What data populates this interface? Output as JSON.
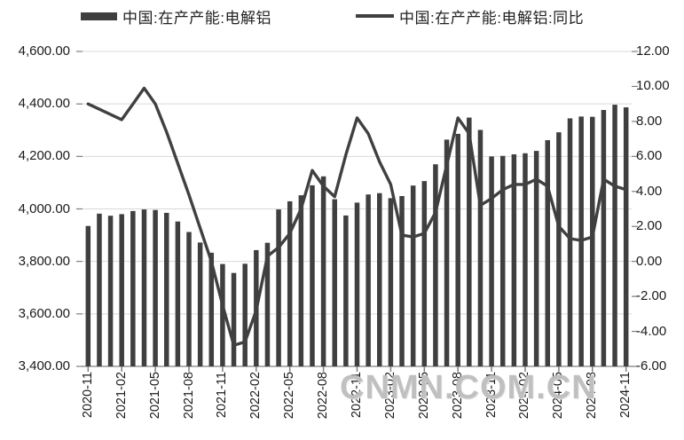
{
  "legend": [
    {
      "label": "中国:在产产能:电解铝",
      "type": "bar"
    },
    {
      "label": "中国:在产产能:电解铝:同比",
      "type": "line"
    }
  ],
  "watermark": "CNMN.COM.CN",
  "colors": {
    "bar_series": "#3f3f3f",
    "line_series": "#404040",
    "grid": "#d9d9d9",
    "axis": "#7f7f7f",
    "tick": "#7f7f7f",
    "text": "#1a1a1a",
    "watermark": "#bababa"
  },
  "chart_data": {
    "type": "bar+line",
    "title": "",
    "grid": true,
    "legend_position": "top",
    "x": [
      "2020-11",
      "2020-12",
      "2021-01",
      "2021-02",
      "2021-03",
      "2021-04",
      "2021-05",
      "2021-06",
      "2021-07",
      "2021-08",
      "2021-09",
      "2021-10",
      "2021-11",
      "2021-12",
      "2022-01",
      "2022-02",
      "2022-03",
      "2022-04",
      "2022-05",
      "2022-06",
      "2022-07",
      "2022-08",
      "2022-09",
      "2022-10",
      "2022-11",
      "2022-12",
      "2023-01",
      "2023-02",
      "2023-03",
      "2023-04",
      "2023-05",
      "2023-06",
      "2023-07",
      "2023-08",
      "2023-09",
      "2023-10",
      "2023-11",
      "2023-12",
      "2024-01",
      "2024-02",
      "2024-03",
      "2024-04",
      "2024-05",
      "2024-06",
      "2024-07",
      "2024-08",
      "2024-09",
      "2024-10",
      "2024-11"
    ],
    "series": [
      {
        "name": "中国:在产产能:电解铝",
        "type": "bar",
        "axis": "left",
        "values": [
          3935,
          3982,
          3974,
          3980,
          3992,
          3998,
          3996,
          3985,
          3952,
          3912,
          3872,
          3833,
          3790,
          3756,
          3791,
          3843,
          3871,
          3998,
          4029,
          4052,
          4090,
          4124,
          4037,
          3975,
          4024,
          4055,
          4060,
          4041,
          4049,
          4089,
          4106,
          4170,
          4264,
          4286,
          4348,
          4301,
          4200,
          4202,
          4208,
          4212,
          4221,
          4262,
          4292,
          4345,
          4352,
          4351,
          4377,
          4397,
          4387
        ]
      },
      {
        "name": "中国:在产产能:电解铝:同比",
        "type": "line",
        "axis": "right",
        "values": [
          9.0,
          8.7,
          8.4,
          8.1,
          9.0,
          9.9,
          9.0,
          7.4,
          5.6,
          3.8,
          1.9,
          0.0,
          -2.5,
          -4.8,
          -4.6,
          -2.8,
          0.3,
          0.8,
          1.6,
          3.0,
          5.2,
          4.3,
          3.7,
          6.1,
          8.2,
          7.3,
          5.7,
          4.4,
          1.5,
          1.4,
          1.6,
          2.8,
          5.5,
          8.2,
          7.3,
          3.2,
          3.6,
          4.1,
          4.4,
          4.4,
          4.7,
          4.3,
          2.0,
          1.3,
          1.2,
          1.4,
          4.7,
          4.3,
          4.1
        ]
      }
    ],
    "left_axis": {
      "min": 3400,
      "max": 4600,
      "step": 200,
      "tick_labels": [
        "4,600.00",
        "4,400.00",
        "4,200.00",
        "4,000.00",
        "3,800.00",
        "3,600.00",
        "3,400.00"
      ]
    },
    "right_axis": {
      "min": -6,
      "max": 12,
      "step": 2,
      "tick_labels": [
        "12.00",
        "10.00",
        "8.00",
        "6.00",
        "4.00",
        "2.00",
        "0.00",
        "-2.00",
        "-4.00",
        "-6.00"
      ]
    },
    "x_tick_every": 3,
    "x_tick_labels": [
      "2020-11",
      "2021-02",
      "2021-05",
      "2021-08",
      "2021-11",
      "2022-02",
      "2022-05",
      "2022-08",
      "2022-11",
      "2023-02",
      "2023-05",
      "2023-08",
      "2023-11",
      "2024-02",
      "2024-05",
      "2024-08",
      "2024-11"
    ]
  }
}
